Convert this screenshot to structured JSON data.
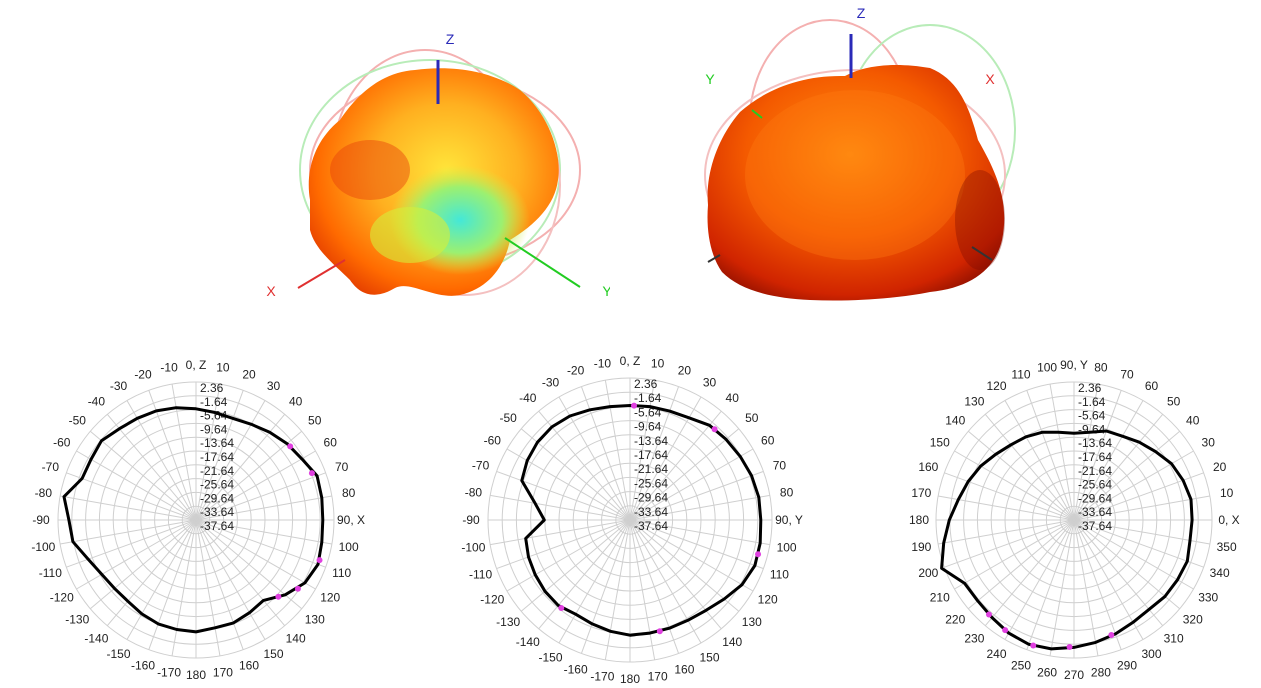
{
  "colors": {
    "x_axis": "#e03030",
    "y_axis": "#22cc22",
    "z_axis": "#2a2ab8",
    "pattern_hot": "#c81e00",
    "pattern_warm": "#ff7a00",
    "pattern_mid": "#ffd21a",
    "pattern_cool": "#55e0c8",
    "curve": "#000000",
    "marker": "#e040e0",
    "grid": "#cfcfcf",
    "labels": "#333333"
  },
  "views3d": [
    {
      "axis_labels": {
        "x": "X",
        "y": "Y",
        "z": "Z"
      }
    },
    {
      "axis_labels": {
        "x": "X",
        "y": "Y",
        "z": "Z"
      }
    }
  ],
  "chart_data": [
    {
      "type": "polar-line",
      "plane": "XZ",
      "radial_ticks": [
        "2.36",
        "-1.64",
        "-5.64",
        "-9.64",
        "-13.64",
        "-17.64",
        "-21.64",
        "-25.64",
        "-29.64",
        "-33.64",
        "-37.64"
      ],
      "rlim": [
        -37.64,
        2.36
      ],
      "angle_labels": [
        {
          "deg": 0,
          "text": "0, Z"
        },
        {
          "deg": 10,
          "text": "10"
        },
        {
          "deg": 20,
          "text": "20"
        },
        {
          "deg": 30,
          "text": "30"
        },
        {
          "deg": 40,
          "text": "40"
        },
        {
          "deg": 50,
          "text": "50"
        },
        {
          "deg": 60,
          "text": "60"
        },
        {
          "deg": 70,
          "text": "70"
        },
        {
          "deg": 80,
          "text": "80"
        },
        {
          "deg": 90,
          "text": "90, X"
        },
        {
          "deg": 100,
          "text": "100"
        },
        {
          "deg": 110,
          "text": "110"
        },
        {
          "deg": 120,
          "text": "120"
        },
        {
          "deg": 130,
          "text": "130"
        },
        {
          "deg": 140,
          "text": "140"
        },
        {
          "deg": 150,
          "text": "150"
        },
        {
          "deg": 160,
          "text": "160"
        },
        {
          "deg": 170,
          "text": "170"
        },
        {
          "deg": 180,
          "text": "180"
        },
        {
          "deg": 190,
          "text": "-170"
        },
        {
          "deg": 200,
          "text": "-160"
        },
        {
          "deg": 210,
          "text": "-150"
        },
        {
          "deg": 220,
          "text": "-140"
        },
        {
          "deg": 230,
          "text": "-130"
        },
        {
          "deg": 240,
          "text": "-120"
        },
        {
          "deg": 250,
          "text": "-110"
        },
        {
          "deg": 260,
          "text": "-100"
        },
        {
          "deg": 270,
          "text": "-90"
        },
        {
          "deg": 280,
          "text": "-80"
        },
        {
          "deg": 290,
          "text": "-70"
        },
        {
          "deg": 300,
          "text": "-60"
        },
        {
          "deg": 310,
          "text": "-50"
        },
        {
          "deg": 320,
          "text": "-40"
        },
        {
          "deg": 330,
          "text": "-30"
        },
        {
          "deg": 340,
          "text": "-20"
        },
        {
          "deg": 350,
          "text": "-10"
        }
      ],
      "series": [
        {
          "angles": [
            0,
            10,
            20,
            30,
            40,
            50,
            60,
            70,
            80,
            90,
            100,
            110,
            120,
            130,
            140,
            150,
            160,
            170,
            180,
            190,
            200,
            210,
            220,
            230,
            240,
            250,
            260,
            270,
            280,
            290,
            300,
            310,
            320,
            330,
            340,
            350
          ],
          "values": [
            -5.4,
            -6.0,
            -6.3,
            -5.6,
            -4.4,
            -3.2,
            -2.2,
            -0.3,
            -0.6,
            -0.9,
            -0.6,
            0.0,
            -1.2,
            -3.9,
            -7.2,
            -6.6,
            -5.9,
            -5.9,
            -5.2,
            -5.4,
            -5.6,
            -6.2,
            -6.9,
            -6.8,
            -6.1,
            -4.4,
            -1.4,
            -0.8,
            1.2,
            -2.5,
            -2.5,
            -1.9,
            -3.1,
            -3.6,
            -4.0,
            -4.6
          ]
        }
      ],
      "markers": [
        {
          "deg": 52,
          "r": -3.0
        },
        {
          "deg": 68,
          "r": -1.4
        },
        {
          "deg": 108,
          "r": 0.0
        },
        {
          "deg": 124,
          "r": -2.0
        },
        {
          "deg": 133,
          "r": -5.0
        }
      ]
    },
    {
      "type": "polar-line",
      "plane": "YZ",
      "radial_ticks": [
        "2.36",
        "-1.64",
        "-5.64",
        "-9.64",
        "-13.64",
        "-17.64",
        "-21.64",
        "-25.64",
        "-29.64",
        "-33.64",
        "-37.64"
      ],
      "rlim": [
        -37.64,
        2.36
      ],
      "angle_labels": [
        {
          "deg": 0,
          "text": "0, Z"
        },
        {
          "deg": 10,
          "text": "10"
        },
        {
          "deg": 20,
          "text": "20"
        },
        {
          "deg": 30,
          "text": "30"
        },
        {
          "deg": 40,
          "text": "40"
        },
        {
          "deg": 50,
          "text": "50"
        },
        {
          "deg": 60,
          "text": "60"
        },
        {
          "deg": 70,
          "text": "70"
        },
        {
          "deg": 80,
          "text": "80"
        },
        {
          "deg": 90,
          "text": "90, Y"
        },
        {
          "deg": 100,
          "text": "100"
        },
        {
          "deg": 110,
          "text": "110"
        },
        {
          "deg": 120,
          "text": "120"
        },
        {
          "deg": 130,
          "text": "130"
        },
        {
          "deg": 140,
          "text": "140"
        },
        {
          "deg": 150,
          "text": "150"
        },
        {
          "deg": 160,
          "text": "160"
        },
        {
          "deg": 170,
          "text": "170"
        },
        {
          "deg": 180,
          "text": "180"
        },
        {
          "deg": 190,
          "text": "-170"
        },
        {
          "deg": 200,
          "text": "-160"
        },
        {
          "deg": 210,
          "text": "-150"
        },
        {
          "deg": 220,
          "text": "-140"
        },
        {
          "deg": 230,
          "text": "-130"
        },
        {
          "deg": 240,
          "text": "-120"
        },
        {
          "deg": 250,
          "text": "-110"
        },
        {
          "deg": 260,
          "text": "-100"
        },
        {
          "deg": 270,
          "text": "-90"
        },
        {
          "deg": 280,
          "text": "-80"
        },
        {
          "deg": 290,
          "text": "-70"
        },
        {
          "deg": 300,
          "text": "-60"
        },
        {
          "deg": 310,
          "text": "-50"
        },
        {
          "deg": 320,
          "text": "-40"
        },
        {
          "deg": 330,
          "text": "-30"
        },
        {
          "deg": 340,
          "text": "-20"
        },
        {
          "deg": 350,
          "text": "-10"
        }
      ],
      "series": [
        {
          "angles": [
            0,
            10,
            20,
            30,
            40,
            50,
            60,
            70,
            80,
            90,
            100,
            110,
            120,
            130,
            140,
            150,
            160,
            170,
            180,
            190,
            200,
            210,
            220,
            230,
            240,
            250,
            260,
            270,
            280,
            290,
            300,
            310,
            320,
            330,
            340,
            350
          ],
          "values": [
            -5.4,
            -5.2,
            -5.0,
            -4.4,
            -2.8,
            -2.3,
            -1.8,
            -1.2,
            -0.8,
            -0.8,
            -0.4,
            -0.2,
            -1.2,
            -3.0,
            -4.4,
            -5.0,
            -5.2,
            -5.3,
            -5.2,
            -5.8,
            -6.5,
            -7.0,
            -6.2,
            -6.4,
            -6.8,
            -7.2,
            -7.8,
            -13.5,
            -10.5,
            -5.2,
            -4.2,
            -3.6,
            -3.4,
            -3.8,
            -4.6,
            -5.2
          ]
        }
      ],
      "markers": [
        {
          "deg": 2,
          "r": -5.4
        },
        {
          "deg": 43,
          "r": -2.7
        },
        {
          "deg": 105,
          "r": -0.3
        },
        {
          "deg": 165,
          "r": -5.2
        },
        {
          "deg": 218,
          "r": -6.2
        }
      ]
    },
    {
      "type": "polar-line",
      "plane": "XY",
      "radial_ticks": [
        "2.36",
        "-1.64",
        "-5.64",
        "-9.64",
        "-13.64",
        "-17.64",
        "-21.64",
        "-25.64",
        "-29.64",
        "-33.64",
        "-37.64"
      ],
      "rlim": [
        -37.64,
        2.36
      ],
      "angle_labels": [
        {
          "deg": 0,
          "text": "90, Y"
        },
        {
          "deg": 10,
          "text": "80"
        },
        {
          "deg": 20,
          "text": "70"
        },
        {
          "deg": 30,
          "text": "60"
        },
        {
          "deg": 40,
          "text": "50"
        },
        {
          "deg": 50,
          "text": "40"
        },
        {
          "deg": 60,
          "text": "30"
        },
        {
          "deg": 70,
          "text": "20"
        },
        {
          "deg": 80,
          "text": "10"
        },
        {
          "deg": 90,
          "text": "0, X"
        },
        {
          "deg": 100,
          "text": "350"
        },
        {
          "deg": 110,
          "text": "340"
        },
        {
          "deg": 120,
          "text": "330"
        },
        {
          "deg": 130,
          "text": "320"
        },
        {
          "deg": 140,
          "text": "310"
        },
        {
          "deg": 150,
          "text": "300"
        },
        {
          "deg": 160,
          "text": "290"
        },
        {
          "deg": 170,
          "text": "280"
        },
        {
          "deg": 180,
          "text": "270"
        },
        {
          "deg": 190,
          "text": "260"
        },
        {
          "deg": 200,
          "text": "250"
        },
        {
          "deg": 210,
          "text": "240"
        },
        {
          "deg": 220,
          "text": "230"
        },
        {
          "deg": 230,
          "text": "220"
        },
        {
          "deg": 240,
          "text": "210"
        },
        {
          "deg": 250,
          "text": "200"
        },
        {
          "deg": 260,
          "text": "190"
        },
        {
          "deg": 270,
          "text": "180"
        },
        {
          "deg": 280,
          "text": "170"
        },
        {
          "deg": 290,
          "text": "160"
        },
        {
          "deg": 300,
          "text": "150"
        },
        {
          "deg": 310,
          "text": "140"
        },
        {
          "deg": 320,
          "text": "130"
        },
        {
          "deg": 330,
          "text": "120"
        },
        {
          "deg": 340,
          "text": "110"
        },
        {
          "deg": 350,
          "text": "100"
        }
      ],
      "series": [
        {
          "angles": [
            0,
            10,
            20,
            30,
            40,
            50,
            60,
            70,
            80,
            90,
            100,
            110,
            120,
            130,
            140,
            150,
            160,
            170,
            180,
            190,
            200,
            210,
            220,
            230,
            240,
            250,
            260,
            270,
            280,
            290,
            300,
            310,
            320,
            330,
            340,
            350
          ],
          "values": [
            -12.5,
            -11.8,
            -10.2,
            -9.6,
            -8.2,
            -6.8,
            -5.0,
            -4.0,
            -3.2,
            -3.4,
            -3.5,
            -2.7,
            -3.0,
            -3.2,
            -3.8,
            -3.4,
            -2.5,
            -1.6,
            -0.7,
            0.3,
            0.7,
            0.2,
            -0.7,
            -1.2,
            -1.0,
            3.2,
            0.7,
            -1.5,
            -3.6,
            -5.0,
            -6.4,
            -8.0,
            -9.2,
            -9.8,
            -10.6,
            -11.8
          ]
        }
      ],
      "markers": [
        {
          "deg": 162,
          "r": -2.6
        },
        {
          "deg": 182,
          "r": -0.8
        },
        {
          "deg": 198,
          "r": 0.6
        },
        {
          "deg": 212,
          "r": 0.0
        },
        {
          "deg": 222,
          "r": -0.8
        }
      ]
    }
  ]
}
